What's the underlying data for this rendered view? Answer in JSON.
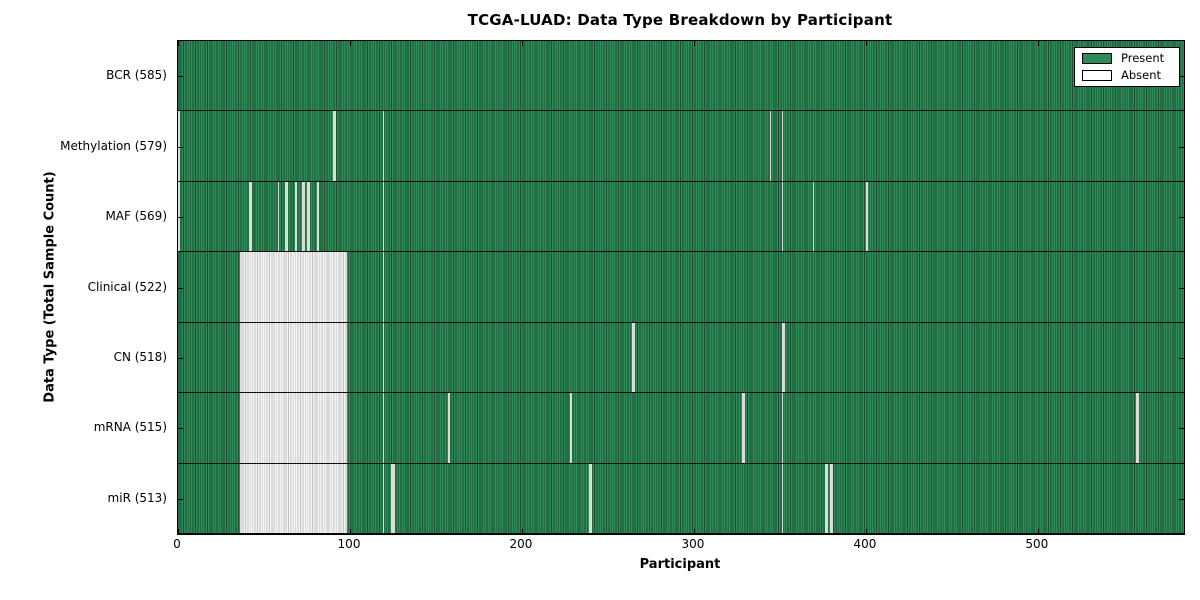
{
  "figure": {
    "title": "TCGA-LUAD: Data Type Breakdown by Participant",
    "xlabel": "Participant",
    "ylabel": "Data Type (Total Sample Count)"
  },
  "legend": {
    "items": [
      {
        "label": "Present",
        "color": "#2e8b57"
      },
      {
        "label": "Absent",
        "color": "#ffffff"
      }
    ]
  },
  "colors": {
    "present_green": "#2e8b57",
    "absent_fill": "#f4f4f4",
    "plot_border": "#000000",
    "background": "#ffffff"
  },
  "chart_data": {
    "type": "heatmap",
    "title": "TCGA-LUAD: Data Type Breakdown by Participant",
    "xlabel": "Participant",
    "ylabel": "Data Type (Total Sample Count)",
    "legend_position": "upper right",
    "legend": [
      {
        "label": "Present",
        "value": "present"
      },
      {
        "label": "Absent",
        "value": "absent"
      }
    ],
    "x_ticks": [
      0,
      100,
      200,
      300,
      400,
      500
    ],
    "xlim": [
      0,
      585
    ],
    "total_participants": 585,
    "rows": [
      {
        "name": "BCR",
        "label": "BCR (585)",
        "present_count": 585,
        "absent": []
      },
      {
        "name": "Methylation",
        "label": "Methylation (579)",
        "present_count": 579,
        "absent": [
          0,
          90,
          91,
          119,
          344,
          351
        ]
      },
      {
        "name": "MAF",
        "label": "MAF (569)",
        "present_count": 569,
        "absent": [
          0,
          41,
          42,
          58,
          62,
          63,
          68,
          72,
          73,
          75,
          76,
          81,
          119,
          351,
          369,
          400
        ]
      },
      {
        "name": "Clinical",
        "label": "Clinical (522)",
        "present_count": 522,
        "absent": [
          [
            36,
            97
          ],
          119
        ]
      },
      {
        "name": "CN",
        "label": "CN (518)",
        "present_count": 518,
        "absent": [
          [
            36,
            97
          ],
          119,
          264,
          265,
          351,
          352
        ]
      },
      {
        "name": "mRNA",
        "label": "mRNA (515)",
        "present_count": 515,
        "absent": [
          [
            36,
            97
          ],
          119,
          157,
          228,
          328,
          329,
          351,
          557,
          558
        ]
      },
      {
        "name": "miR",
        "label": "miR (513)",
        "present_count": 513,
        "absent": [
          [
            36,
            97
          ],
          119,
          124,
          125,
          239,
          240,
          351,
          376,
          377,
          379,
          380
        ]
      }
    ]
  }
}
